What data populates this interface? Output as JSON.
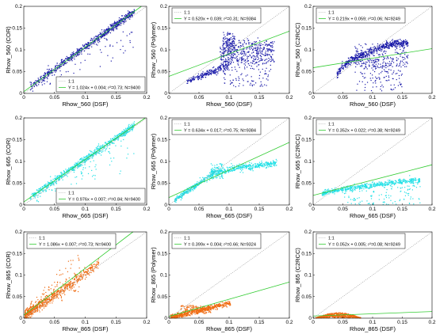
{
  "chart_data": [
    {
      "type": "scatter",
      "xlabel": "Rhow_560 (DSF)",
      "ylabel": "Rhow_560 (COR)",
      "xlim": [
        0,
        0.2
      ],
      "ylim": [
        0,
        0.2
      ],
      "xticks": [
        "0",
        "0.05",
        "0.1",
        "0.15",
        "0.2"
      ],
      "yticks": [
        "0",
        "0.05",
        "0.1",
        "0.15",
        "0.2"
      ],
      "color": "#1a1aa8",
      "legend_position": "bottom-right",
      "legend": [
        "1:1",
        "Y = 1.024x + 0.004; r²=0.73; N=9400"
      ],
      "fit": {
        "slope": 1.024,
        "intercept": 0.004
      },
      "pattern": "linear"
    },
    {
      "type": "scatter",
      "xlabel": "Rhow_560 (DSF)",
      "ylabel": "Rhow_560 (Polymer)",
      "xlim": [
        0,
        0.2
      ],
      "ylim": [
        0,
        0.2
      ],
      "xticks": [
        "0",
        "0.05",
        "0.1",
        "0.15",
        "0.2"
      ],
      "yticks": [
        "0",
        "0.05",
        "0.1",
        "0.15",
        "0.2"
      ],
      "color": "#1a1aa8",
      "legend_position": "top-left",
      "legend": [
        "1:1",
        "Y = 0.520x + 0.039; r²=0.31; N=9384"
      ],
      "fit": {
        "slope": 0.52,
        "intercept": 0.039
      },
      "pattern": "polymer560"
    },
    {
      "type": "scatter",
      "xlabel": "Rhow_560 (DSF)",
      "ylabel": "Rhow_560 (C2RCC)",
      "xlim": [
        0,
        0.2
      ],
      "ylim": [
        0,
        0.2
      ],
      "xticks": [
        "0",
        "0.05",
        "0.1",
        "0.15",
        "0.2"
      ],
      "yticks": [
        "0",
        "0.05",
        "0.1",
        "0.15",
        "0.2"
      ],
      "color": "#1a1aa8",
      "legend_position": "top-left",
      "legend": [
        "1:1",
        "Y = 0.219x + 0.059; r²=0.06; N=9249"
      ],
      "fit": {
        "slope": 0.219,
        "intercept": 0.059
      },
      "pattern": "c2rcc560"
    },
    {
      "type": "scatter",
      "xlabel": "Rhow_665 (DSF)",
      "ylabel": "Rhow_665 (COR)",
      "xlim": [
        0,
        0.2
      ],
      "ylim": [
        0,
        0.2
      ],
      "xticks": [
        "0",
        "0.05",
        "0.1",
        "0.15",
        "0.2"
      ],
      "yticks": [
        "0",
        "0.05",
        "0.1",
        "0.15",
        "0.2"
      ],
      "color": "#22e0e6",
      "legend_position": "bottom-right",
      "legend": [
        "1:1",
        "Y = 0.976x + 0.007; r²=0.84; N=9400"
      ],
      "fit": {
        "slope": 0.976,
        "intercept": 0.007
      },
      "pattern": "linear"
    },
    {
      "type": "scatter",
      "xlabel": "Rhow_665 (DSF)",
      "ylabel": "Rhow_665 (Polymer)",
      "xlim": [
        0,
        0.2
      ],
      "ylim": [
        0,
        0.2
      ],
      "xticks": [
        "0",
        "0.05",
        "0.1",
        "0.15",
        "0.2"
      ],
      "yticks": [
        "0",
        "0.05",
        "0.1",
        "0.15",
        "0.2"
      ],
      "color": "#22e0e6",
      "legend_position": "top-left",
      "legend": [
        "1:1",
        "Y = 0.634x + 0.017; r²=0.75; N=9384"
      ],
      "fit": {
        "slope": 0.634,
        "intercept": 0.017
      },
      "pattern": "polymer665"
    },
    {
      "type": "scatter",
      "xlabel": "Rhow_665 (DSF)",
      "ylabel": "Rhow_665 (C2RCC)",
      "xlim": [
        0,
        0.2
      ],
      "ylim": [
        0,
        0.2
      ],
      "xticks": [
        "0",
        "0.05",
        "0.1",
        "0.15",
        "0.2"
      ],
      "yticks": [
        "0",
        "0.05",
        "0.1",
        "0.15",
        "0.2"
      ],
      "color": "#22e0e6",
      "legend_position": "top-left",
      "legend": [
        "1:1",
        "Y = 0.352x + 0.022; r²=0.38; N=9249"
      ],
      "fit": {
        "slope": 0.352,
        "intercept": 0.022
      },
      "pattern": "c2rcc665"
    },
    {
      "type": "scatter",
      "xlabel": "Rhow_865 (DSF)",
      "ylabel": "Rhow_865 (COR)",
      "xlim": [
        0,
        0.2
      ],
      "ylim": [
        0,
        0.2
      ],
      "xticks": [
        "0",
        "0.05",
        "0.1",
        "0.15",
        "0.2"
      ],
      "yticks": [
        "0",
        "0.05",
        "0.1",
        "0.15",
        "0.2"
      ],
      "color": "#ef6a10",
      "legend_position": "top-left",
      "legend": [
        "1:1",
        "Y = 1.086x + 0.007; r²=0.73; N=9400"
      ],
      "fit": {
        "slope": 1.086,
        "intercept": 0.007
      },
      "pattern": "linear865"
    },
    {
      "type": "scatter",
      "xlabel": "Rhow_865 (DSF)",
      "ylabel": "Rhow_865 (Polymer)",
      "xlim": [
        0,
        0.2
      ],
      "ylim": [
        0,
        0.2
      ],
      "xticks": [
        "0",
        "0.05",
        "0.1",
        "0.15",
        "0.2"
      ],
      "yticks": [
        "0",
        "0.05",
        "0.1",
        "0.15",
        "0.2"
      ],
      "color": "#ef6a10",
      "legend_position": "top-left",
      "legend": [
        "1:1",
        "Y = 0.399x + 0.004; r²=0.66; N=9324"
      ],
      "fit": {
        "slope": 0.399,
        "intercept": 0.004
      },
      "pattern": "polymer865"
    },
    {
      "type": "scatter",
      "xlabel": "Rhow_865 (DSF)",
      "ylabel": "Rhow_865 (C2RCC)",
      "xlim": [
        0,
        0.2
      ],
      "ylim": [
        0,
        0.2
      ],
      "xticks": [
        "0",
        "0.05",
        "0.1",
        "0.15",
        "0.2"
      ],
      "yticks": [
        "0",
        "0.05",
        "0.1",
        "0.15",
        "0.2"
      ],
      "color": "#ef6a10",
      "legend_position": "top-left",
      "legend": [
        "1:1",
        "Y = 0.052x + 0.005; r²=0.08; N=9249"
      ],
      "fit": {
        "slope": 0.052,
        "intercept": 0.005
      },
      "pattern": "c2rcc865"
    }
  ]
}
